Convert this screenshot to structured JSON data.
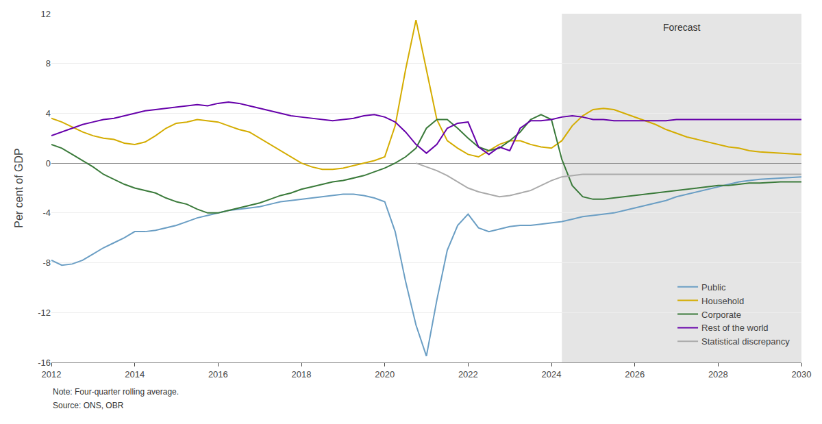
{
  "chart_data": {
    "type": "line",
    "ylabel": "Per cent of GDP",
    "xlim": [
      2012,
      2030
    ],
    "xticks": [
      2012,
      2014,
      2016,
      2018,
      2020,
      2022,
      2024,
      2026,
      2028,
      2030
    ],
    "ylim": [
      -16,
      12
    ],
    "yticks": [
      -16,
      -12,
      -8,
      -4,
      0,
      4,
      8,
      12
    ],
    "grid": "y",
    "legend": "lower right",
    "shaded_regions": [
      {
        "x0": 2024.25,
        "x1": 2030,
        "label": "Forecast",
        "color": "#e5e5e5"
      }
    ],
    "note": "Note: Four-quarter rolling average.",
    "source": "Source: ONS, OBR",
    "series": [
      {
        "name": "Public",
        "color": "#6a9ec4",
        "x": [
          2012.0,
          2012.25,
          2012.5,
          2012.75,
          2013.0,
          2013.25,
          2013.5,
          2013.75,
          2014.0,
          2014.25,
          2014.5,
          2014.75,
          2015.0,
          2015.25,
          2015.5,
          2015.75,
          2016.0,
          2016.25,
          2016.5,
          2016.75,
          2017.0,
          2017.25,
          2017.5,
          2017.75,
          2018.0,
          2018.25,
          2018.5,
          2018.75,
          2019.0,
          2019.25,
          2019.5,
          2019.75,
          2020.0,
          2020.25,
          2020.5,
          2020.75,
          2021.0,
          2021.25,
          2021.5,
          2021.75,
          2022.0,
          2022.25,
          2022.5,
          2022.75,
          2023.0,
          2023.25,
          2023.5,
          2023.75,
          2024.0,
          2024.25,
          2024.5,
          2024.75,
          2025.0,
          2025.25,
          2025.5,
          2025.75,
          2026.0,
          2026.25,
          2026.5,
          2026.75,
          2027.0,
          2027.25,
          2027.5,
          2027.75,
          2028.0,
          2028.25,
          2028.5,
          2028.75,
          2029.0,
          2029.5,
          2030.0
        ],
        "values": [
          -7.8,
          -8.2,
          -8.1,
          -7.8,
          -7.3,
          -6.8,
          -6.4,
          -6.0,
          -5.5,
          -5.5,
          -5.4,
          -5.2,
          -5.0,
          -4.7,
          -4.4,
          -4.2,
          -4.0,
          -3.8,
          -3.7,
          -3.6,
          -3.5,
          -3.3,
          -3.1,
          -3.0,
          -2.9,
          -2.8,
          -2.7,
          -2.6,
          -2.5,
          -2.5,
          -2.6,
          -2.8,
          -3.1,
          -5.5,
          -9.5,
          -13.0,
          -15.5,
          -11.0,
          -7.0,
          -5.0,
          -4.1,
          -5.2,
          -5.5,
          -5.3,
          -5.1,
          -5.0,
          -5.0,
          -4.9,
          -4.8,
          -4.7,
          -4.5,
          -4.3,
          -4.2,
          -4.1,
          -4.0,
          -3.8,
          -3.6,
          -3.4,
          -3.2,
          -3.0,
          -2.7,
          -2.5,
          -2.3,
          -2.1,
          -1.9,
          -1.7,
          -1.5,
          -1.4,
          -1.3,
          -1.2,
          -1.1
        ]
      },
      {
        "name": "Household",
        "color": "#d4ac00",
        "x": [
          2012.0,
          2012.25,
          2012.5,
          2012.75,
          2013.0,
          2013.25,
          2013.5,
          2013.75,
          2014.0,
          2014.25,
          2014.5,
          2014.75,
          2015.0,
          2015.25,
          2015.5,
          2015.75,
          2016.0,
          2016.25,
          2016.5,
          2016.75,
          2017.0,
          2017.25,
          2017.5,
          2017.75,
          2018.0,
          2018.25,
          2018.5,
          2018.75,
          2019.0,
          2019.25,
          2019.5,
          2019.75,
          2020.0,
          2020.25,
          2020.5,
          2020.75,
          2021.0,
          2021.25,
          2021.5,
          2021.75,
          2022.0,
          2022.25,
          2022.5,
          2022.75,
          2023.0,
          2023.25,
          2023.5,
          2023.75,
          2024.0,
          2024.25,
          2024.5,
          2024.75,
          2025.0,
          2025.25,
          2025.5,
          2025.75,
          2026.0,
          2026.25,
          2026.5,
          2026.75,
          2027.0,
          2027.25,
          2027.5,
          2027.75,
          2028.0,
          2028.25,
          2028.5,
          2028.75,
          2029.0,
          2029.5,
          2030.0
        ],
        "values": [
          3.6,
          3.3,
          2.9,
          2.5,
          2.2,
          2.0,
          1.9,
          1.6,
          1.5,
          1.7,
          2.2,
          2.8,
          3.2,
          3.3,
          3.5,
          3.4,
          3.3,
          3.0,
          2.7,
          2.5,
          2.0,
          1.5,
          1.0,
          0.5,
          0.0,
          -0.3,
          -0.5,
          -0.5,
          -0.4,
          -0.2,
          0.0,
          0.2,
          0.5,
          3.0,
          7.5,
          11.5,
          7.5,
          3.5,
          1.8,
          1.2,
          0.7,
          0.5,
          1.0,
          1.5,
          1.8,
          1.8,
          1.5,
          1.3,
          1.2,
          1.8,
          3.0,
          3.8,
          4.3,
          4.4,
          4.3,
          4.0,
          3.7,
          3.4,
          3.1,
          2.7,
          2.4,
          2.1,
          1.9,
          1.7,
          1.5,
          1.3,
          1.2,
          1.0,
          0.9,
          0.8,
          0.7
        ]
      },
      {
        "name": "Corporate",
        "color": "#3a7a3a",
        "x": [
          2012.0,
          2012.25,
          2012.5,
          2012.75,
          2013.0,
          2013.25,
          2013.5,
          2013.75,
          2014.0,
          2014.25,
          2014.5,
          2014.75,
          2015.0,
          2015.25,
          2015.5,
          2015.75,
          2016.0,
          2016.25,
          2016.5,
          2016.75,
          2017.0,
          2017.25,
          2017.5,
          2017.75,
          2018.0,
          2018.25,
          2018.5,
          2018.75,
          2019.0,
          2019.25,
          2019.5,
          2019.75,
          2020.0,
          2020.25,
          2020.5,
          2020.75,
          2021.0,
          2021.25,
          2021.5,
          2021.75,
          2022.0,
          2022.25,
          2022.5,
          2022.75,
          2023.0,
          2023.25,
          2023.5,
          2023.75,
          2024.0,
          2024.25,
          2024.5,
          2024.75,
          2025.0,
          2025.25,
          2025.5,
          2025.75,
          2026.0,
          2026.25,
          2026.5,
          2026.75,
          2027.0,
          2027.25,
          2027.5,
          2027.75,
          2028.0,
          2028.25,
          2028.5,
          2028.75,
          2029.0,
          2029.5,
          2030.0
        ],
        "values": [
          1.5,
          1.2,
          0.7,
          0.2,
          -0.3,
          -0.9,
          -1.3,
          -1.7,
          -2.0,
          -2.2,
          -2.4,
          -2.8,
          -3.1,
          -3.3,
          -3.7,
          -4.0,
          -4.0,
          -3.8,
          -3.6,
          -3.4,
          -3.2,
          -2.9,
          -2.6,
          -2.4,
          -2.1,
          -1.9,
          -1.7,
          -1.5,
          -1.4,
          -1.2,
          -1.0,
          -0.7,
          -0.4,
          0.0,
          0.5,
          1.2,
          2.8,
          3.5,
          3.5,
          2.8,
          2.0,
          1.3,
          1.0,
          1.2,
          1.8,
          2.5,
          3.5,
          3.9,
          3.5,
          0.3,
          -1.8,
          -2.7,
          -2.9,
          -2.9,
          -2.8,
          -2.7,
          -2.6,
          -2.5,
          -2.4,
          -2.3,
          -2.2,
          -2.1,
          -2.0,
          -1.9,
          -1.8,
          -1.8,
          -1.7,
          -1.6,
          -1.6,
          -1.5,
          -1.5
        ]
      },
      {
        "name": "Rest of the world",
        "color": "#6600aa",
        "x": [
          2012.0,
          2012.25,
          2012.5,
          2012.75,
          2013.0,
          2013.25,
          2013.5,
          2013.75,
          2014.0,
          2014.25,
          2014.5,
          2014.75,
          2015.0,
          2015.25,
          2015.5,
          2015.75,
          2016.0,
          2016.25,
          2016.5,
          2016.75,
          2017.0,
          2017.25,
          2017.5,
          2017.75,
          2018.0,
          2018.25,
          2018.5,
          2018.75,
          2019.0,
          2019.25,
          2019.5,
          2019.75,
          2020.0,
          2020.25,
          2020.5,
          2020.75,
          2021.0,
          2021.25,
          2021.5,
          2021.75,
          2022.0,
          2022.25,
          2022.5,
          2022.75,
          2023.0,
          2023.25,
          2023.5,
          2023.75,
          2024.0,
          2024.25,
          2024.5,
          2024.75,
          2025.0,
          2025.25,
          2025.5,
          2025.75,
          2026.0,
          2026.25,
          2026.5,
          2026.75,
          2027.0,
          2027.25,
          2027.5,
          2027.75,
          2028.0,
          2028.25,
          2028.5,
          2028.75,
          2029.0,
          2029.5,
          2030.0
        ],
        "values": [
          2.2,
          2.5,
          2.8,
          3.1,
          3.3,
          3.5,
          3.6,
          3.8,
          4.0,
          4.2,
          4.3,
          4.4,
          4.5,
          4.6,
          4.7,
          4.6,
          4.8,
          4.9,
          4.8,
          4.6,
          4.4,
          4.2,
          4.0,
          3.8,
          3.7,
          3.6,
          3.5,
          3.4,
          3.5,
          3.6,
          3.8,
          3.9,
          3.7,
          3.3,
          2.5,
          1.5,
          0.8,
          1.5,
          2.8,
          3.2,
          3.3,
          1.3,
          0.7,
          1.3,
          1.0,
          2.8,
          3.4,
          3.4,
          3.5,
          3.7,
          3.8,
          3.7,
          3.5,
          3.5,
          3.4,
          3.4,
          3.4,
          3.4,
          3.4,
          3.4,
          3.5,
          3.5,
          3.5,
          3.5,
          3.5,
          3.5,
          3.5,
          3.5,
          3.5,
          3.5,
          3.5
        ]
      },
      {
        "name": "Statistical discrepancy",
        "color": "#aaaaaa",
        "x": [
          2020.75,
          2021.0,
          2021.25,
          2021.5,
          2021.75,
          2022.0,
          2022.25,
          2022.5,
          2022.75,
          2023.0,
          2023.25,
          2023.5,
          2023.75,
          2024.0,
          2024.25,
          2024.5,
          2024.75,
          2025.0,
          2025.25,
          2025.5,
          2025.75,
          2026.0,
          2026.25,
          2026.5,
          2026.75,
          2027.0,
          2027.25,
          2027.5,
          2027.75,
          2028.0,
          2028.25,
          2028.5,
          2028.75,
          2029.0,
          2029.5,
          2030.0
        ],
        "values": [
          0.0,
          -0.3,
          -0.6,
          -1.0,
          -1.5,
          -2.0,
          -2.3,
          -2.5,
          -2.7,
          -2.6,
          -2.4,
          -2.2,
          -1.8,
          -1.4,
          -1.1,
          -1.0,
          -0.9,
          -0.9,
          -0.9,
          -0.9,
          -0.9,
          -0.9,
          -0.9,
          -0.9,
          -0.9,
          -0.9,
          -0.9,
          -0.9,
          -0.9,
          -0.9,
          -0.9,
          -0.9,
          -0.9,
          -0.9,
          -0.9,
          -0.9
        ]
      }
    ]
  }
}
